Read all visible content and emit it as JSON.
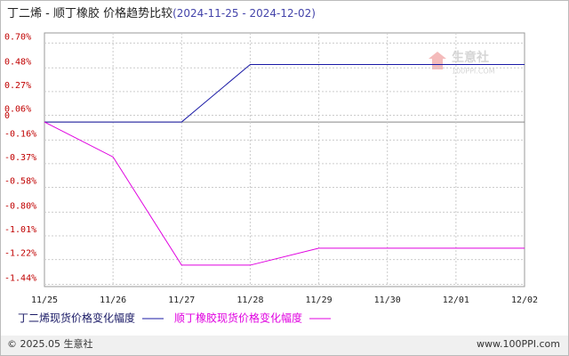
{
  "chart_data": {
    "type": "line",
    "title": "丁二烯 - 顺丁橡胶 价格趋势比较",
    "subtitle": "(2024-11-25 - 2024-12-02)",
    "categories": [
      "11/25",
      "11/26",
      "11/27",
      "11/28",
      "11/29",
      "11/30",
      "12/01",
      "12/02"
    ],
    "series": [
      {
        "name": "丁二烯现货价格变化幅度",
        "color": "#1a1aa6",
        "values": [
          0,
          0,
          0,
          0.51,
          0.51,
          0.51,
          0.51,
          0.51
        ]
      },
      {
        "name": "顺丁橡胶现货价格变化幅度",
        "color": "#e000e0",
        "values": [
          0,
          -0.31,
          -1.27,
          -1.27,
          -1.12,
          -1.12,
          -1.12,
          -1.12
        ]
      }
    ],
    "ylim": [
      -1.46,
      0.79
    ],
    "yticks": [
      {
        "value": 0.7,
        "label": "0.70%"
      },
      {
        "value": 0.48,
        "label": "0.48%"
      },
      {
        "value": 0.27,
        "label": "0.27%"
      },
      {
        "value": 0.06,
        "label": "0.06%"
      },
      0,
      {
        "value": -0.16,
        "label": "-0.16%"
      },
      {
        "value": -0.37,
        "label": "-0.37%"
      },
      {
        "value": -0.58,
        "label": "-0.58%"
      },
      {
        "value": -0.8,
        "label": "-0.80%"
      },
      {
        "value": -1.01,
        "label": "-1.01%"
      },
      {
        "value": -1.22,
        "label": "-1.22%"
      },
      {
        "value": -1.44,
        "label": "-1.44%"
      }
    ],
    "grid": true,
    "watermark": {
      "name": "生意社",
      "site": "100PPI.COM"
    },
    "footer": {
      "copyright": "© 2025.05 生意社",
      "site": "www.100PPI.com"
    }
  }
}
